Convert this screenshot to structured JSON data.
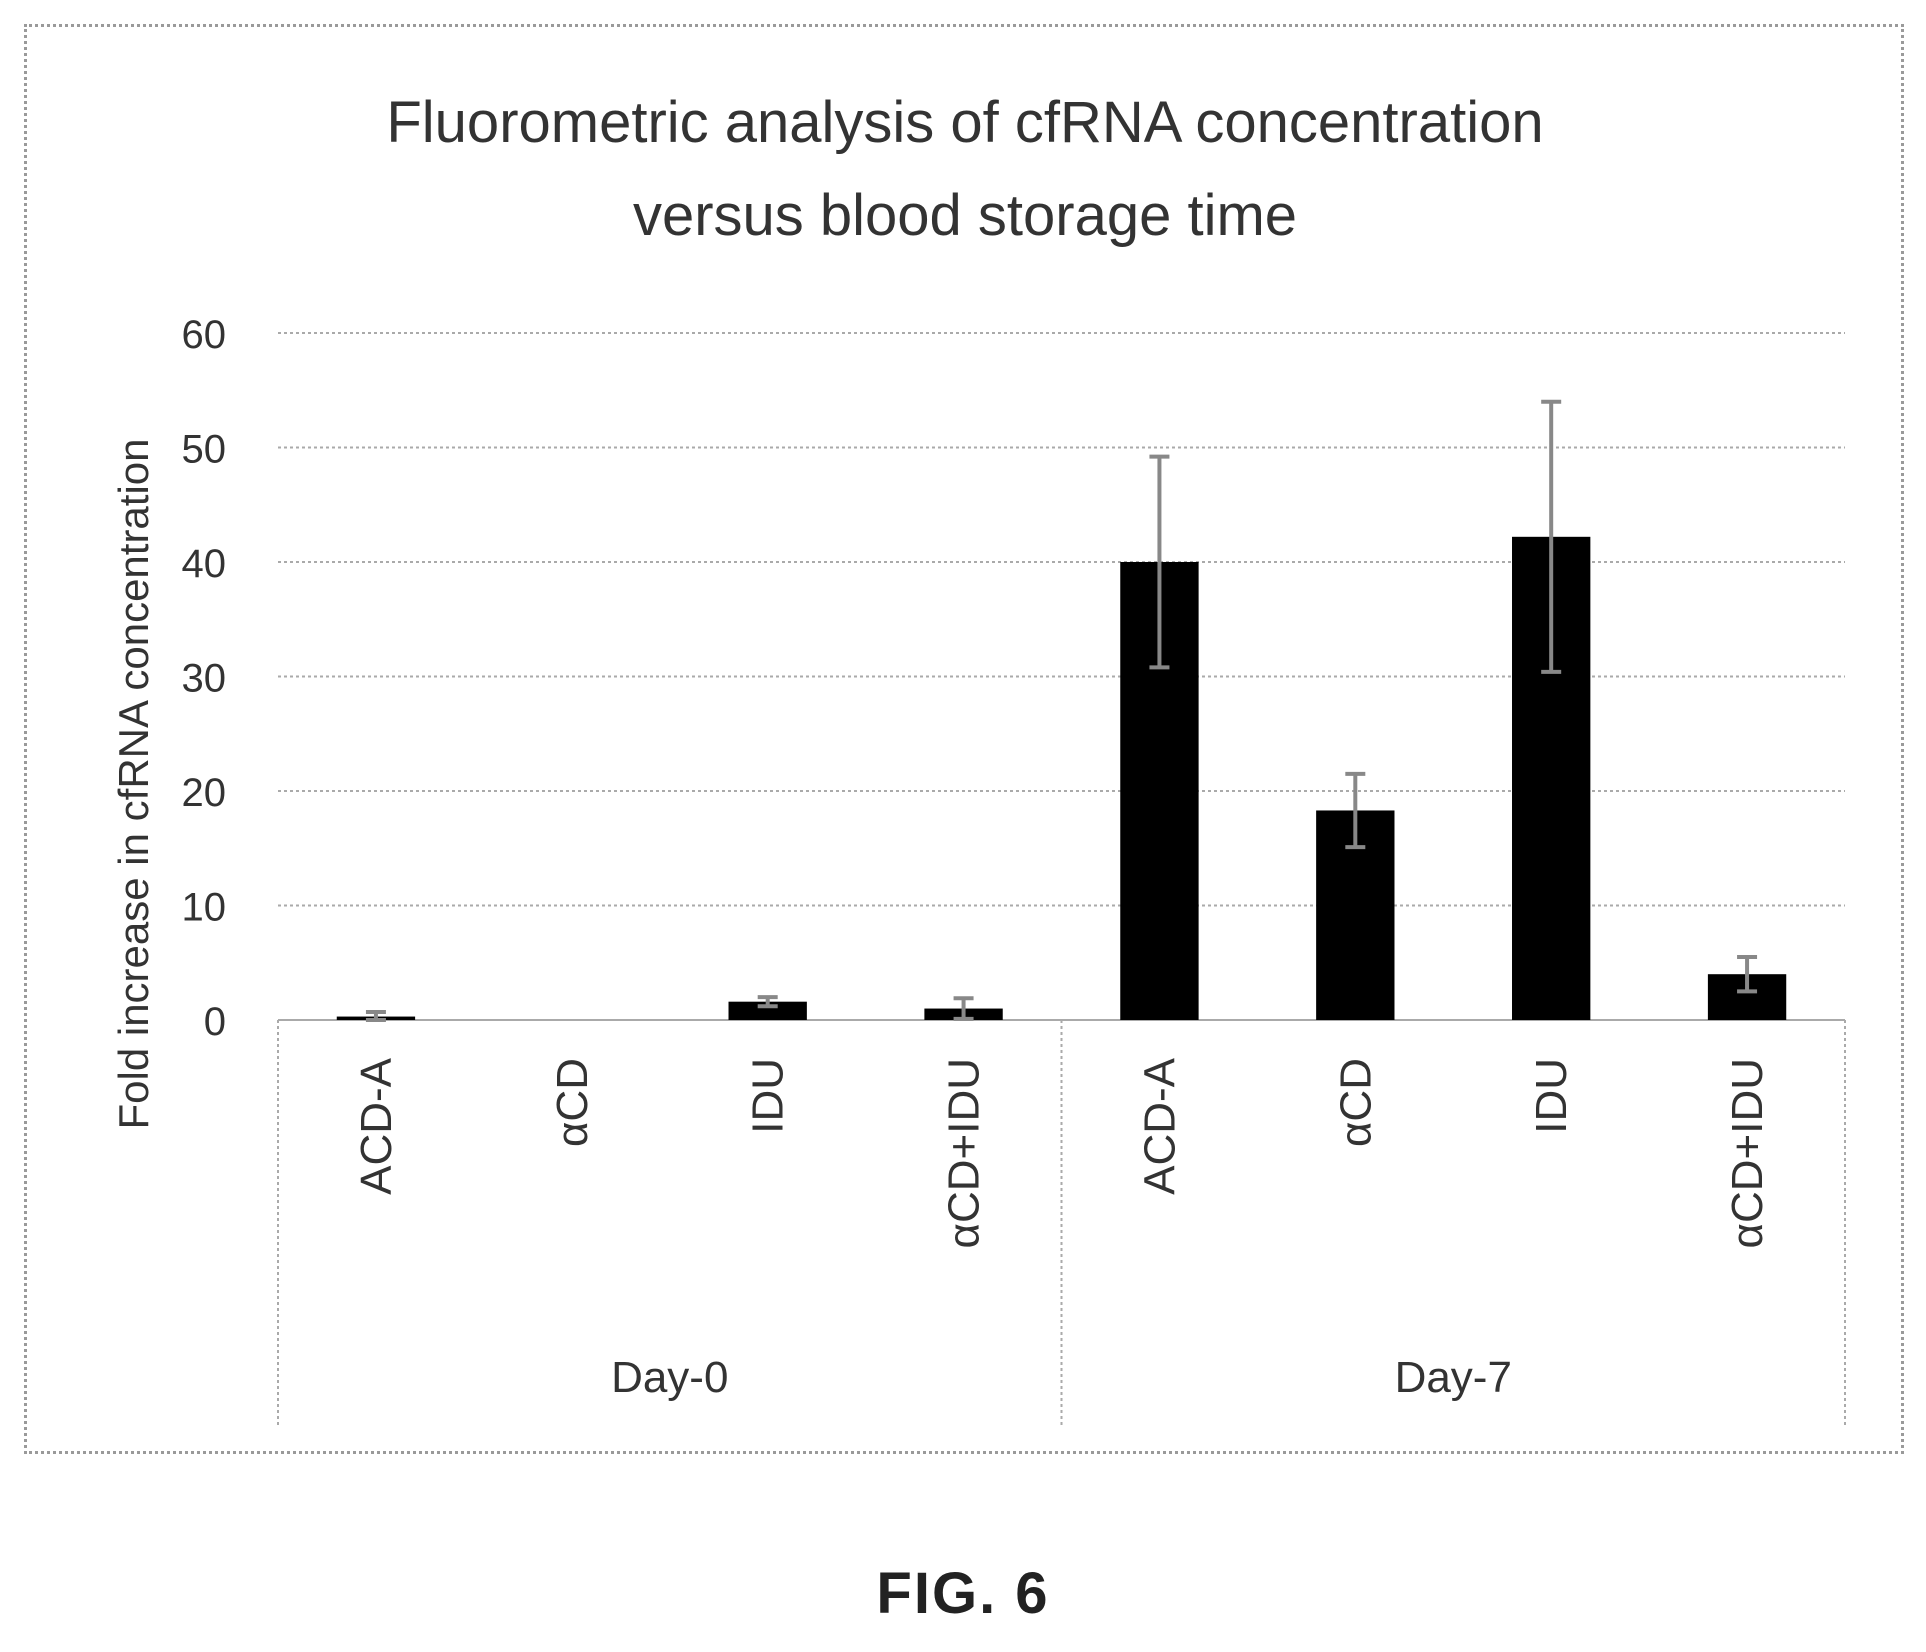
{
  "chart_data": {
    "type": "bar",
    "title_lines": [
      "Fluorometric analysis of cfRNA concentration",
      "versus blood storage time"
    ],
    "ylabel": "Fold increase in cfRNA concentration",
    "xlabel": "",
    "ylim": [
      0,
      60
    ],
    "yticks": [
      0,
      10,
      20,
      30,
      40,
      50,
      60
    ],
    "grid": true,
    "legend": "none",
    "groups": [
      {
        "label": "Day-0",
        "categories": [
          "ACD-A",
          "αCD",
          "IDU",
          "αCD+IDU"
        ]
      },
      {
        "label": "Day-7",
        "categories": [
          "ACD-A",
          "αCD",
          "IDU",
          "αCD+IDU"
        ]
      }
    ],
    "categories": [
      "ACD-A",
      "αCD",
      "IDU",
      "αCD+IDU",
      "ACD-A",
      "αCD",
      "IDU",
      "αCD+IDU"
    ],
    "values": [
      0.3,
      0,
      1.6,
      1.0,
      40,
      18.3,
      42.2,
      4.0
    ],
    "errors": [
      0.4,
      0,
      0.4,
      0.9,
      9.2,
      3.2,
      11.8,
      1.5
    ],
    "colors": {
      "bar": "#000000",
      "grid": "#aaaaaa",
      "error": "#888888",
      "text": "#222222"
    }
  },
  "figure": {
    "label": "FIG. 6"
  }
}
